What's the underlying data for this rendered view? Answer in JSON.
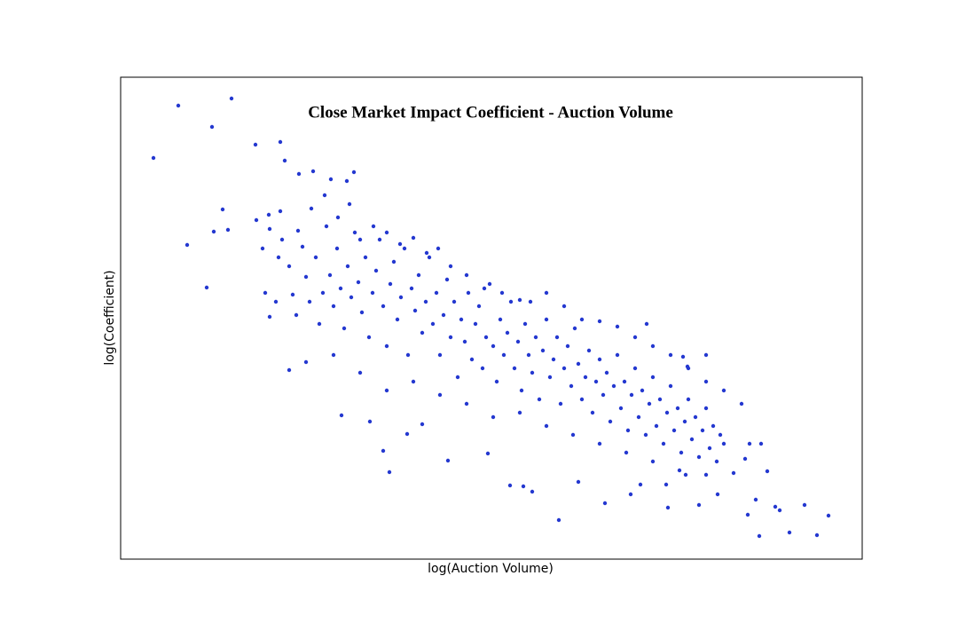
{
  "chart_data": {
    "type": "scatter",
    "title": "Close Market Impact Coefficient - Auction Volume",
    "x_label": "log(Auction Volume)",
    "y_label": "log(Coefficient)",
    "color": "#2438d0",
    "xlim": [
      0,
      836
    ],
    "ylim": [
      0,
      543
    ],
    "x": [
      37,
      65,
      103,
      125,
      152,
      180,
      75,
      97,
      115,
      105,
      121,
      185,
      201,
      217,
      237,
      263,
      255,
      153,
      167,
      180,
      168,
      190,
      209,
      249,
      281,
      296,
      303,
      323,
      340,
      369,
      414,
      439,
      454,
      464,
      494,
      516,
      546,
      575,
      586,
      615,
      617,
      637,
      652,
      673,
      691,
      707,
      720,
      716,
      738,
      743,
      754,
      771,
      785,
      798,
      704,
      709,
      722,
      729,
      593,
      639,
      634,
      160,
      163,
      168,
      175,
      178,
      182,
      190,
      194,
      198,
      205,
      209,
      213,
      220,
      224,
      228,
      232,
      236,
      240,
      244,
      248,
      252,
      256,
      260,
      264,
      268,
      272,
      276,
      280,
      284,
      288,
      292,
      296,
      300,
      304,
      308,
      312,
      316,
      320,
      324,
      328,
      332,
      336,
      340,
      344,
      348,
      352,
      356,
      360,
      364,
      368,
      372,
      376,
      380,
      384,
      388,
      392,
      396,
      400,
      404,
      408,
      412,
      416,
      420,
      424,
      428,
      432,
      436,
      440,
      444,
      448,
      452,
      456,
      460,
      464,
      468,
      472,
      476,
      480,
      484,
      488,
      492,
      496,
      500,
      504,
      508,
      512,
      516,
      520,
      524,
      528,
      532,
      536,
      540,
      544,
      548,
      552,
      556,
      560,
      564,
      568,
      572,
      576,
      580,
      584,
      588,
      592,
      596,
      600,
      604,
      608,
      612,
      616,
      620,
      624,
      628,
      632,
      636,
      640,
      644,
      648,
      652,
      656,
      660,
      664,
      668,
      672,
      676,
      680,
      200,
      215,
      230,
      245,
      258,
      270,
      285,
      300,
      315,
      330,
      345,
      358,
      372,
      390,
      410,
      430,
      450,
      462,
      240,
      270,
      300,
      330,
      360,
      390,
      420,
      450,
      480,
      510,
      540,
      570,
      600,
      630,
      660,
      480,
      500,
      520,
      540,
      560,
      580,
      600,
      620,
      640,
      660,
      680,
      700,
      660
    ],
    "values": [
      452,
      511,
      487,
      519,
      467,
      470,
      354,
      306,
      394,
      369,
      371,
      449,
      434,
      437,
      428,
      436,
      426,
      382,
      388,
      392,
      273,
      213,
      222,
      162,
      155,
      122,
      98,
      141,
      152,
      111,
      119,
      83,
      82,
      76,
      44,
      87,
      63,
      73,
      84,
      84,
      58,
      95,
      61,
      73,
      97,
      50,
      26,
      67,
      59,
      55,
      30,
      61,
      27,
      49,
      113,
      130,
      130,
      99,
      265,
      217,
      228,
      350,
      300,
      372,
      290,
      340,
      360,
      330,
      298,
      275,
      352,
      318,
      290,
      340,
      265,
      300,
      375,
      320,
      285,
      350,
      305,
      260,
      330,
      295,
      368,
      312,
      278,
      340,
      250,
      300,
      325,
      360,
      285,
      240,
      310,
      335,
      270,
      295,
      350,
      230,
      305,
      280,
      320,
      255,
      290,
      340,
      265,
      300,
      230,
      275,
      315,
      250,
      290,
      205,
      270,
      245,
      300,
      225,
      265,
      285,
      215,
      250,
      310,
      240,
      200,
      270,
      230,
      255,
      290,
      215,
      245,
      190,
      265,
      230,
      210,
      250,
      180,
      235,
      270,
      205,
      225,
      250,
      175,
      215,
      240,
      195,
      260,
      220,
      180,
      205,
      235,
      165,
      200,
      225,
      185,
      210,
      155,
      195,
      230,
      170,
      200,
      145,
      185,
      215,
      160,
      190,
      140,
      175,
      205,
      150,
      180,
      130,
      165,
      195,
      145,
      170,
      120,
      155,
      180,
      135,
      160,
      115,
      145,
      170,
      125,
      150,
      110,
      140,
      130,
      370,
      395,
      410,
      385,
      400,
      360,
      375,
      368,
      355,
      362,
      345,
      350,
      330,
      320,
      305,
      300,
      292,
      290,
      230,
      210,
      190,
      200,
      185,
      175,
      160,
      165,
      150,
      140,
      130,
      120,
      110,
      100,
      95,
      300,
      285,
      270,
      268,
      262,
      250,
      240,
      230,
      215,
      200,
      190,
      175,
      230
    ]
  }
}
